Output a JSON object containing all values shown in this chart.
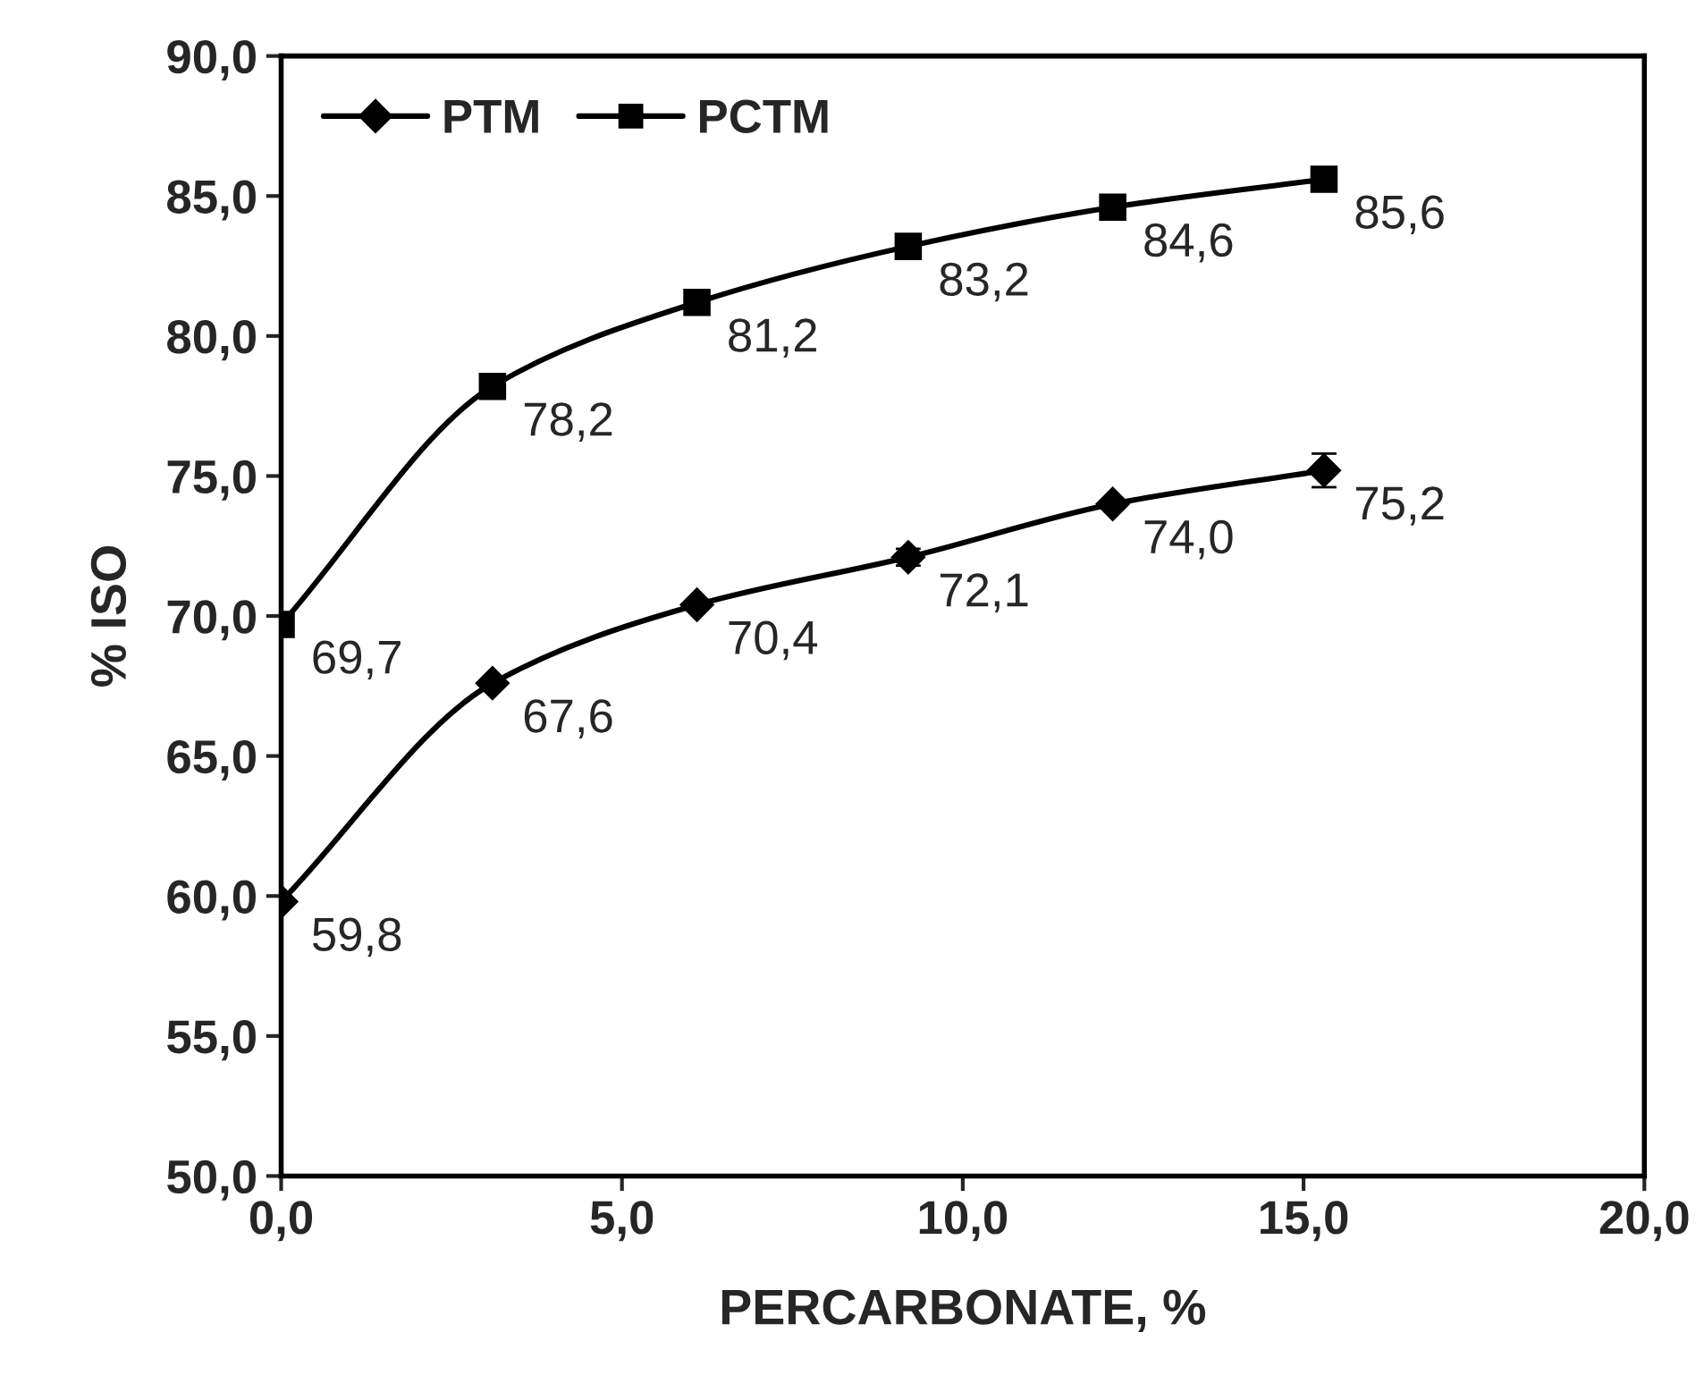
{
  "chart_data": {
    "type": "line",
    "xlabel": "PERCARBONATE, %",
    "ylabel": "% ISO",
    "xlim": [
      0,
      20
    ],
    "ylim": [
      50,
      90
    ],
    "xticks": [
      {
        "value": 0,
        "label": "0,0"
      },
      {
        "value": 5,
        "label": "5,0"
      },
      {
        "value": 10,
        "label": "10,0"
      },
      {
        "value": 15,
        "label": "15,0"
      },
      {
        "value": 20,
        "label": "20,0"
      }
    ],
    "yticks": [
      {
        "value": 50,
        "label": "50,0"
      },
      {
        "value": 55,
        "label": "55,0"
      },
      {
        "value": 60,
        "label": "60,0"
      },
      {
        "value": 65,
        "label": "65,0"
      },
      {
        "value": 70,
        "label": "70,0"
      },
      {
        "value": 75,
        "label": "75,0"
      },
      {
        "value": 80,
        "label": "80,0"
      },
      {
        "value": 85,
        "label": "85,0"
      },
      {
        "value": 90,
        "label": "90,0"
      }
    ],
    "x": [
      0,
      3.1,
      6.1,
      9.2,
      12.2,
      15.3
    ],
    "series": [
      {
        "name": "PTM",
        "color": "#000000",
        "marker": "diamond",
        "values": [
          59.8,
          67.6,
          70.4,
          72.1,
          74.0,
          75.2
        ],
        "value_labels": [
          "59,8",
          "67,6",
          "70,4",
          "72,1",
          "74,0",
          "75,2"
        ],
        "errors": [
          null,
          null,
          null,
          0.3,
          null,
          0.6
        ]
      },
      {
        "name": "PCTM",
        "color": "#000000",
        "marker": "square",
        "values": [
          69.7,
          78.2,
          81.2,
          83.2,
          84.6,
          85.6
        ],
        "value_labels": [
          "69,7",
          "78,2",
          "81,2",
          "83,2",
          "84,6",
          "85,6"
        ]
      }
    ],
    "legend": "top left",
    "grid": false,
    "line_style": "solid"
  }
}
